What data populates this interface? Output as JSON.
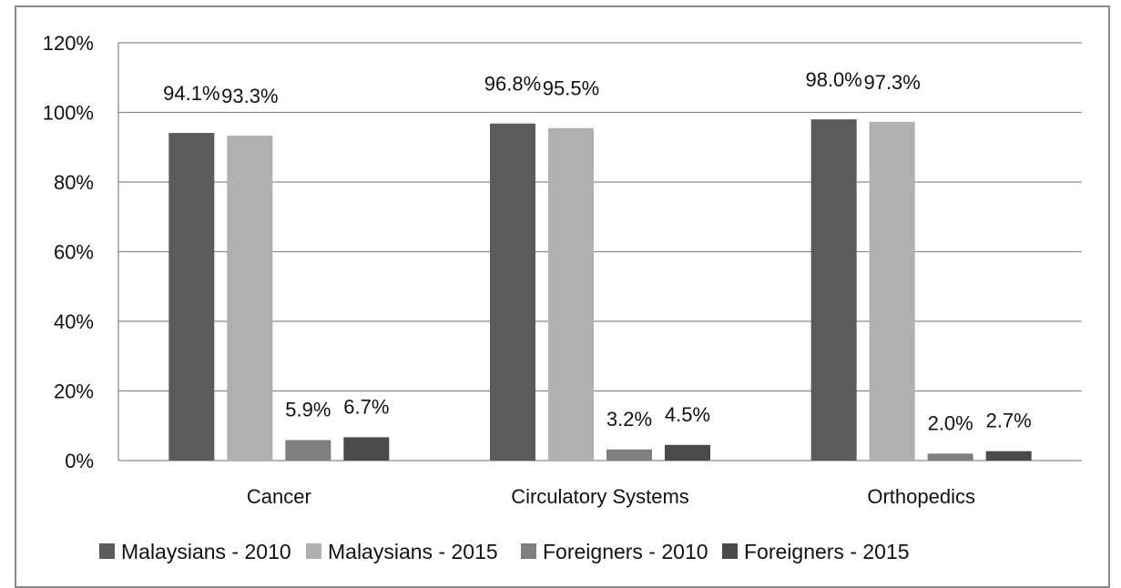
{
  "chart_data": {
    "type": "bar",
    "title": "",
    "xlabel": "",
    "ylabel": "",
    "categories": [
      "Cancer",
      "Circulatory Systems",
      "Orthopedics"
    ],
    "series": [
      {
        "name": "Malaysians - 2010",
        "color": "#5a5b5d",
        "values": [
          94.1,
          96.8,
          98.0
        ],
        "labels": [
          "94.1%",
          "96.8%",
          "98.0%"
        ]
      },
      {
        "name": "Malaysians - 2015",
        "color": "#b0b0b0",
        "values": [
          93.3,
          95.5,
          97.3
        ],
        "labels": [
          "93.3%",
          "95.5%",
          "97.3%"
        ]
      },
      {
        "name": "Foreigners - 2010",
        "color": "#7f7f7f",
        "values": [
          5.9,
          3.2,
          2.0
        ],
        "labels": [
          "5.9%",
          "3.2%",
          "2.0%"
        ]
      },
      {
        "name": "Foreigners - 2015",
        "color": "#4a4a4a",
        "values": [
          6.7,
          4.5,
          2.7
        ],
        "labels": [
          "6.7%",
          "4.5%",
          "2.7%"
        ]
      }
    ],
    "ylim": [
      0,
      120
    ],
    "yticks": [
      0,
      20,
      40,
      60,
      80,
      100,
      120
    ],
    "ytick_labels": [
      "0%",
      "20%",
      "40%",
      "60%",
      "80%",
      "100%",
      "120%"
    ],
    "grid": true,
    "legend_position": "bottom"
  }
}
